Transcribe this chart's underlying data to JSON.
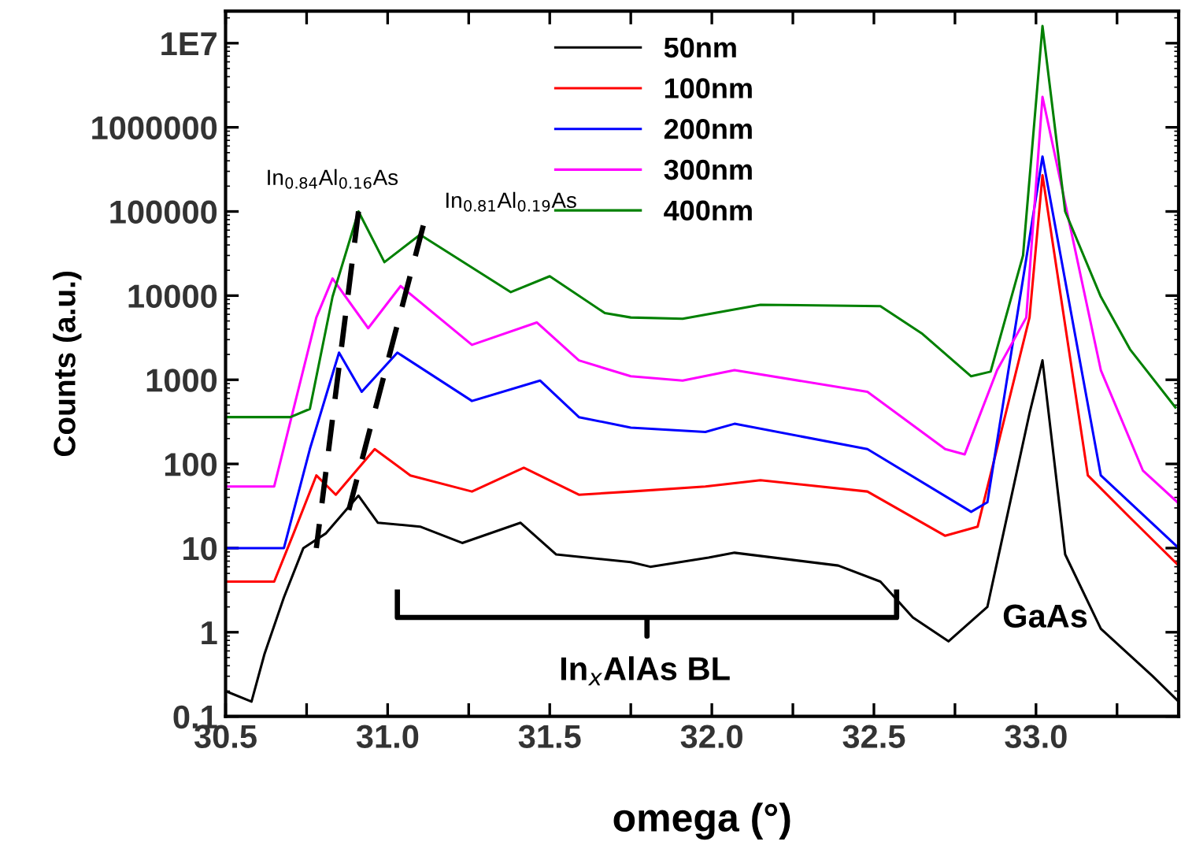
{
  "chart_data": {
    "type": "line",
    "xlabel": "omega (°)",
    "ylabel": "Counts (a.u.)",
    "log": "y",
    "xlim": [
      30.5,
      33.44
    ],
    "ylim": [
      0.1,
      24000000
    ],
    "xticks": [
      {
        "value": 30.5,
        "label": "30.5"
      },
      {
        "value": 30.75,
        "label": null
      },
      {
        "value": 31.0,
        "label": "31.0"
      },
      {
        "value": 31.25,
        "label": null
      },
      {
        "value": 31.5,
        "label": "31.5"
      },
      {
        "value": 31.75,
        "label": null
      },
      {
        "value": 32.0,
        "label": "32.0"
      },
      {
        "value": 32.25,
        "label": null
      },
      {
        "value": 32.5,
        "label": "32.5"
      },
      {
        "value": 32.75,
        "label": null
      },
      {
        "value": 33.0,
        "label": "33.0"
      },
      {
        "value": 33.25,
        "label": null
      }
    ],
    "yticks": [
      0.1,
      1,
      10,
      100,
      1000,
      10000,
      100000,
      1000000,
      {
        "value": 10000000,
        "label": "1E7"
      }
    ],
    "legend": "top",
    "grid": false,
    "series": [
      {
        "name": "50nm",
        "color": "#000000",
        "x": [
          30.5,
          30.58,
          30.62,
          30.68,
          30.74,
          30.81,
          30.91,
          30.97,
          31.1,
          31.23,
          31.41,
          31.52,
          31.75,
          31.81,
          31.99,
          32.07,
          32.39,
          32.52,
          32.62,
          32.73,
          32.85,
          32.98,
          33.02,
          33.09,
          33.2,
          33.36,
          33.44
        ],
        "values": [
          0.2,
          0.15,
          0.55,
          2.6,
          10,
          15,
          42,
          20,
          18,
          11.5,
          20,
          8.4,
          6.8,
          6,
          7.7,
          8.8,
          6.2,
          4,
          1.5,
          0.78,
          2,
          400,
          1700,
          8.4,
          1.1,
          0.3,
          0.15
        ]
      },
      {
        "name": "100nm",
        "color": "#ff0000",
        "x": [
          30.5,
          30.65,
          30.71,
          30.78,
          30.84,
          30.96,
          31.07,
          31.26,
          31.42,
          31.59,
          31.75,
          31.98,
          32.15,
          32.48,
          32.72,
          32.82,
          32.98,
          33.02,
          33.16,
          33.29,
          33.44
        ],
        "values": [
          4,
          4,
          15,
          73,
          43,
          150,
          73,
          47,
          90,
          43,
          47,
          54,
          64,
          47,
          14,
          18,
          5500,
          270000,
          73,
          23,
          6.2
        ]
      },
      {
        "name": "200nm",
        "color": "#0000ff",
        "x": [
          30.5,
          30.68,
          30.76,
          30.85,
          30.92,
          31.03,
          31.26,
          31.47,
          31.59,
          31.75,
          31.98,
          32.07,
          32.48,
          32.8,
          32.85,
          32.98,
          33.02,
          33.2,
          33.44
        ],
        "values": [
          10,
          10,
          150,
          2100,
          720,
          2100,
          560,
          980,
          360,
          270,
          240,
          300,
          150,
          27,
          35,
          48000,
          450000,
          73,
          10
        ]
      },
      {
        "name": "300nm",
        "color": "#ff00ff",
        "x": [
          30.5,
          30.65,
          30.78,
          30.83,
          30.94,
          31.04,
          31.26,
          31.46,
          31.59,
          31.75,
          31.91,
          32.07,
          32.48,
          32.72,
          32.78,
          32.88,
          32.97,
          33.02,
          33.2,
          33.33,
          33.44
        ],
        "values": [
          54,
          54,
          5500,
          16000,
          4100,
          13000,
          2600,
          4800,
          1700,
          1100,
          980,
          1300,
          720,
          150,
          130,
          1300,
          5500,
          2300000,
          1300,
          83,
          34
        ]
      },
      {
        "name": "400nm",
        "color": "#008000",
        "x": [
          30.5,
          30.7,
          30.76,
          30.83,
          30.91,
          30.99,
          31.1,
          31.38,
          31.5,
          31.67,
          31.75,
          31.91,
          32.15,
          32.52,
          32.65,
          32.8,
          32.86,
          32.96,
          33.02,
          33.09,
          33.2,
          33.29,
          33.43
        ],
        "values": [
          360,
          360,
          450,
          9700,
          100000,
          25000,
          53000,
          11000,
          17000,
          6200,
          5500,
          5300,
          7800,
          7500,
          3500,
          1100,
          1250,
          30000,
          16000000,
          100000,
          9700,
          2300,
          470
        ]
      },
      {
        "color": "#000000",
        "line_style": "dashed",
        "x": [
          30.91,
          30.78
        ],
        "values": [
          100000,
          10
        ]
      },
      {
        "color": "#000000",
        "line_style": "dashed",
        "x": [
          31.11,
          30.87
        ],
        "values": [
          68000,
          20
        ]
      },
      {
        "color": "#000000",
        "x": [
          31.03,
          31.03,
          31.8,
          31.8,
          31.8,
          32.57,
          32.57
        ],
        "values": [
          3,
          1.5,
          1.5,
          0.9,
          1.5,
          1.5,
          3
        ]
      }
    ],
    "annotations": [
      {
        "text": "In$_{0.84}$Al$_{0.16}$As",
        "x": 30.91,
        "y": 100000
      },
      {
        "text": "In$_{0.81}$Al$_{0.19}$As",
        "x": 31.11,
        "y": 68000
      },
      "In$_{x}$AlAs BL",
      "GaAs"
    ]
  }
}
